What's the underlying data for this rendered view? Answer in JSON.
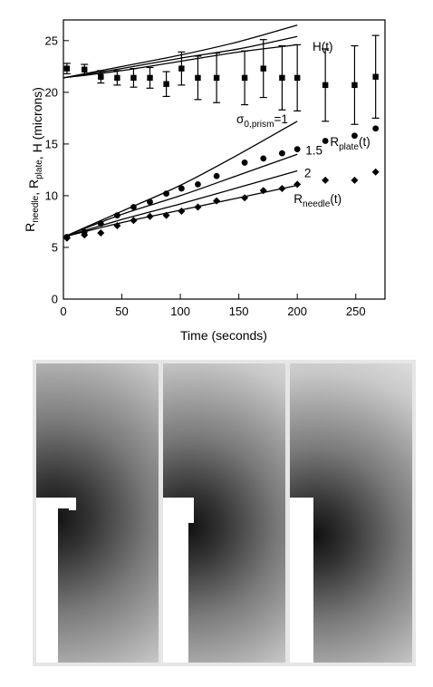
{
  "chart_data": {
    "type": "scatter",
    "xlabel": "Time (seconds)",
    "ylabel": {
      "parts": [
        {
          "text": "R",
          "sub": "needle"
        },
        {
          "text": ", R",
          "sub": "plate"
        },
        {
          "text": ", H (microns)",
          "sub": ""
        }
      ]
    },
    "xlim": [
      0,
      275
    ],
    "ylim": [
      0,
      27
    ],
    "xticks": [
      0,
      50,
      100,
      150,
      200,
      250
    ],
    "yticks": [
      0,
      5,
      10,
      15,
      20,
      25
    ],
    "series": [
      {
        "name": "H(t)",
        "marker": "square",
        "x": [
          3,
          18,
          32,
          46,
          60,
          74,
          88,
          101,
          115,
          131,
          155,
          171,
          187,
          200,
          224,
          249,
          267
        ],
        "y": [
          22.3,
          22.2,
          21.5,
          21.4,
          21.4,
          21.4,
          20.8,
          22.3,
          21.4,
          21.4,
          21.4,
          22.3,
          21.4,
          21.4,
          20.7,
          20.7,
          21.5
        ],
        "err": [
          0.5,
          0.5,
          0.6,
          0.7,
          0.9,
          1.0,
          1.2,
          1.6,
          2.1,
          2.4,
          2.6,
          2.8,
          3.1,
          3.2,
          3.5,
          3.8,
          4.0
        ]
      },
      {
        "name": "R_plate(t)",
        "marker": "circle",
        "x": [
          3,
          18,
          32,
          46,
          60,
          74,
          88,
          101,
          115,
          131,
          155,
          171,
          187,
          200,
          224,
          249,
          267
        ],
        "y": [
          6.0,
          6.5,
          7.3,
          8.1,
          8.9,
          9.4,
          10.2,
          10.7,
          11.1,
          11.9,
          13.2,
          13.6,
          14.1,
          14.5,
          15.3,
          15.8,
          16.5
        ]
      },
      {
        "name": "R_needle(t)",
        "marker": "diamond",
        "x": [
          3,
          18,
          32,
          46,
          60,
          74,
          88,
          101,
          115,
          131,
          155,
          171,
          187,
          200,
          224,
          249,
          267
        ],
        "y": [
          5.9,
          6.2,
          6.4,
          7.1,
          7.6,
          8.0,
          8.1,
          8.5,
          8.9,
          9.5,
          9.8,
          10.5,
          10.7,
          11.1,
          11.5,
          11.5,
          12.3
        ]
      }
    ],
    "model_curves": {
      "H": [
        {
          "x": [
            0,
            50,
            100,
            150,
            200
          ],
          "y": [
            21.4,
            22.5,
            23.6,
            24.9,
            26.5
          ]
        },
        {
          "x": [
            0,
            50,
            100,
            150,
            200
          ],
          "y": [
            21.4,
            22.3,
            23.3,
            24.2,
            25.4
          ]
        },
        {
          "x": [
            0,
            50,
            100,
            150,
            200
          ],
          "y": [
            21.4,
            22.1,
            23.0,
            23.9,
            24.6
          ]
        }
      ],
      "R": [
        {
          "x": [
            0,
            50,
            100,
            150,
            200
          ],
          "y": [
            6.0,
            8.5,
            11.0,
            14.0,
            17.2
          ]
        },
        {
          "x": [
            0,
            50,
            100,
            150,
            200
          ],
          "y": [
            6.0,
            8.2,
            10.0,
            12.0,
            14.0
          ]
        },
        {
          "x": [
            0,
            50,
            100,
            150,
            200
          ],
          "y": [
            6.0,
            7.7,
            9.2,
            10.8,
            12.4
          ]
        },
        {
          "x": [
            0,
            50,
            100,
            150,
            200
          ],
          "y": [
            6.0,
            7.4,
            8.6,
            9.8,
            11.0
          ]
        }
      ]
    },
    "annotations": [
      {
        "text": "H(t)",
        "x": 213,
        "y": 24.0
      },
      {
        "text": "σ",
        "sub": "0,prism",
        "suffix": "=1",
        "x": 148,
        "y": 17.0
      },
      {
        "text": "1.5",
        "x": 207,
        "y": 14.0
      },
      {
        "text": "2",
        "x": 206,
        "y": 11.8
      },
      {
        "text": "R",
        "sub": "plate",
        "suffix": "(t)",
        "x": 228,
        "y": 14.8
      },
      {
        "text": "R",
        "sub": "needle",
        "suffix": "(t)",
        "x": 197,
        "y": 9.3
      }
    ]
  },
  "panels": [
    {
      "id": "left"
    },
    {
      "id": "middle"
    },
    {
      "id": "right"
    }
  ]
}
